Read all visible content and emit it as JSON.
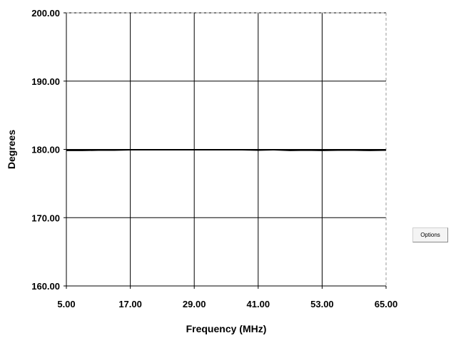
{
  "chart_data": {
    "type": "line",
    "title": "",
    "xlabel": "Frequency (MHz)",
    "ylabel": "Degrees",
    "xlim": [
      5,
      65
    ],
    "ylim": [
      160,
      200
    ],
    "x_ticks": [
      5,
      17,
      29,
      41,
      53,
      65
    ],
    "x_tick_labels": [
      "5.00",
      "17.00",
      "29.00",
      "41.00",
      "53.00",
      "65.00"
    ],
    "y_ticks": [
      160,
      170,
      180,
      190,
      200
    ],
    "y_tick_labels": [
      "160.00",
      "170.00",
      "180.00",
      "190.00",
      "200.00"
    ],
    "grid": true,
    "legend": "none",
    "series": [
      {
        "color": "#000000",
        "x": [
          5,
          8,
          11,
          14,
          17,
          20,
          23,
          26,
          29,
          32,
          35,
          38,
          41,
          44,
          47,
          50,
          53,
          56,
          59,
          62,
          65
        ],
        "y": [
          179.85,
          179.85,
          179.9,
          179.9,
          179.95,
          179.95,
          179.95,
          179.95,
          179.95,
          179.95,
          179.95,
          179.95,
          179.9,
          179.95,
          179.85,
          179.9,
          179.85,
          179.9,
          179.9,
          179.85,
          179.9
        ]
      }
    ]
  },
  "controls": {
    "options_label": "Options"
  }
}
